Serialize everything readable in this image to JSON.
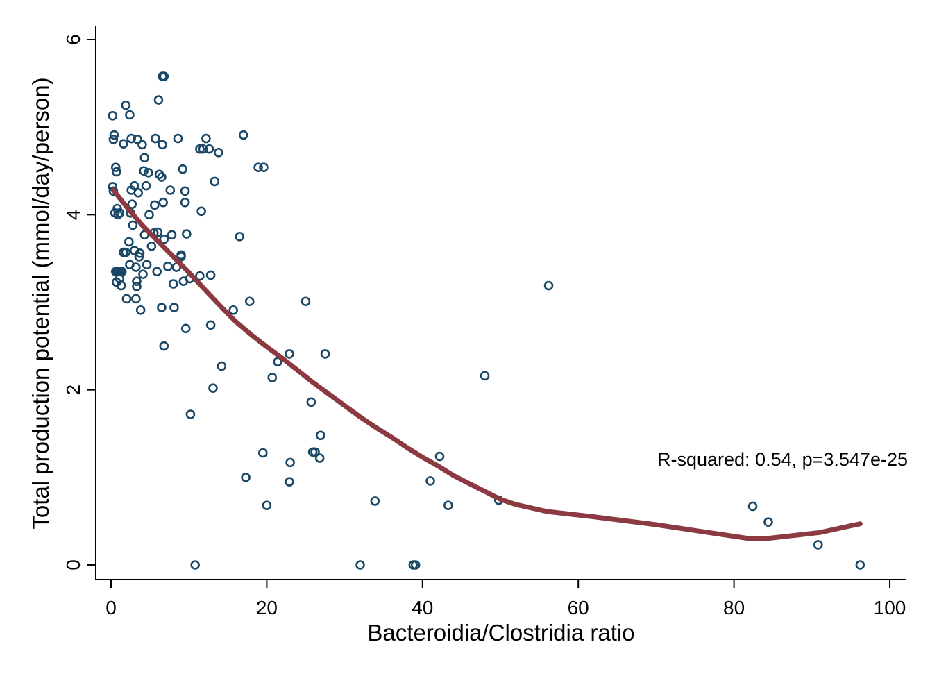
{
  "chart_data": {
    "type": "scatter",
    "title": "",
    "xlabel": "Bacteroidia/Clostridia ratio",
    "ylabel": "Total production potential (mmol/day/person)",
    "xlim": [
      0,
      100
    ],
    "ylim": [
      0,
      6
    ],
    "x_ticks": [
      "0",
      "20",
      "40",
      "60",
      "80",
      "100"
    ],
    "y_ticks": [
      "0",
      "2",
      "4",
      "6"
    ],
    "grid": false,
    "legend": "none",
    "annotation": "R-squared: 0.54, p=3.547e-25",
    "colors": {
      "points": "#1a4766",
      "fit_line": "#8b3a41",
      "axis": "#000000"
    },
    "series": [
      {
        "kind": "points",
        "marker": "hollow-circle",
        "points": [
          [
            0.2,
            5.13
          ],
          [
            0.3,
            4.86
          ],
          [
            0.4,
            4.91
          ],
          [
            0.2,
            4.32
          ],
          [
            0.3,
            4.27
          ],
          [
            0.6,
            4.54
          ],
          [
            0.7,
            4.49
          ],
          [
            0.5,
            4.02
          ],
          [
            0.8,
            4.07
          ],
          [
            0.9,
            4.0
          ],
          [
            1.1,
            4.02
          ],
          [
            0.6,
            3.35
          ],
          [
            0.8,
            3.35
          ],
          [
            1.0,
            3.35
          ],
          [
            1.2,
            3.35
          ],
          [
            1.4,
            3.35
          ],
          [
            0.7,
            3.23
          ],
          [
            1.1,
            3.27
          ],
          [
            1.3,
            3.19
          ],
          [
            1.6,
            3.57
          ],
          [
            1.9,
            3.57
          ],
          [
            1.6,
            4.81
          ],
          [
            1.9,
            5.25
          ],
          [
            2.4,
            5.14
          ],
          [
            2.6,
            4.87
          ],
          [
            2.0,
            3.04
          ],
          [
            2.3,
            3.69
          ],
          [
            2.4,
            3.43
          ],
          [
            2.5,
            4.02
          ],
          [
            2.6,
            4.28
          ],
          [
            2.7,
            4.12
          ],
          [
            2.8,
            3.88
          ],
          [
            3.0,
            4.33
          ],
          [
            3.0,
            3.59
          ],
          [
            3.2,
            3.4
          ],
          [
            3.3,
            3.24
          ],
          [
            3.2,
            3.04
          ],
          [
            3.3,
            3.18
          ],
          [
            3.4,
            4.86
          ],
          [
            3.5,
            4.25
          ],
          [
            3.6,
            3.52
          ],
          [
            3.7,
            3.56
          ],
          [
            3.8,
            2.91
          ],
          [
            4.0,
            4.8
          ],
          [
            4.1,
            3.32
          ],
          [
            4.2,
            4.5
          ],
          [
            4.3,
            4.65
          ],
          [
            4.3,
            3.77
          ],
          [
            4.5,
            4.33
          ],
          [
            4.6,
            3.43
          ],
          [
            4.8,
            4.48
          ],
          [
            4.9,
            4.0
          ],
          [
            5.2,
            3.64
          ],
          [
            5.5,
            3.79
          ],
          [
            5.6,
            4.11
          ],
          [
            5.7,
            4.87
          ],
          [
            5.9,
            3.35
          ],
          [
            6.0,
            3.8
          ],
          [
            6.1,
            5.31
          ],
          [
            6.2,
            4.46
          ],
          [
            6.5,
            4.43
          ],
          [
            6.5,
            2.94
          ],
          [
            6.6,
            4.8
          ],
          [
            6.7,
            4.14
          ],
          [
            6.8,
            3.72
          ],
          [
            6.6,
            5.58
          ],
          [
            6.8,
            5.58
          ],
          [
            6.8,
            2.5
          ],
          [
            7.3,
            3.41
          ],
          [
            7.6,
            4.28
          ],
          [
            7.8,
            3.77
          ],
          [
            8.0,
            3.21
          ],
          [
            8.1,
            2.94
          ],
          [
            8.4,
            3.4
          ],
          [
            8.6,
            4.87
          ],
          [
            9.0,
            3.52
          ],
          [
            9.0,
            3.54
          ],
          [
            9.2,
            4.52
          ],
          [
            9.3,
            3.24
          ],
          [
            9.5,
            4.14
          ],
          [
            9.5,
            4.27
          ],
          [
            9.7,
            3.78
          ],
          [
            9.6,
            2.7
          ],
          [
            10.2,
            1.72
          ],
          [
            10.1,
            3.27
          ],
          [
            10.8,
            0.0
          ],
          [
            11.4,
            4.75
          ],
          [
            11.8,
            4.75
          ],
          [
            11.6,
            4.04
          ],
          [
            12.2,
            4.87
          ],
          [
            12.6,
            4.75
          ],
          [
            11.4,
            3.3
          ],
          [
            12.8,
            3.31
          ],
          [
            12.8,
            2.74
          ],
          [
            13.1,
            2.02
          ],
          [
            13.3,
            4.38
          ],
          [
            13.8,
            4.71
          ],
          [
            14.2,
            2.27
          ],
          [
            15.7,
            2.91
          ],
          [
            16.5,
            3.75
          ],
          [
            17.0,
            4.91
          ],
          [
            17.3,
            1.0
          ],
          [
            17.8,
            3.01
          ],
          [
            18.9,
            4.54
          ],
          [
            19.6,
            4.54
          ],
          [
            19.5,
            1.28
          ],
          [
            20.0,
            0.68
          ],
          [
            20.7,
            2.14
          ],
          [
            21.4,
            2.32
          ],
          [
            22.9,
            2.41
          ],
          [
            23.0,
            1.17
          ],
          [
            22.9,
            0.95
          ],
          [
            25.0,
            3.01
          ],
          [
            25.7,
            1.86
          ],
          [
            25.9,
            1.29
          ],
          [
            26.2,
            1.29
          ],
          [
            26.8,
            1.22
          ],
          [
            26.9,
            1.48
          ],
          [
            27.5,
            2.41
          ],
          [
            32.0,
            0.0
          ],
          [
            33.9,
            0.73
          ],
          [
            38.8,
            0.0
          ],
          [
            39.1,
            0.0
          ],
          [
            41.0,
            0.96
          ],
          [
            42.2,
            1.24
          ],
          [
            43.3,
            0.68
          ],
          [
            48.0,
            2.16
          ],
          [
            49.8,
            0.74
          ],
          [
            56.2,
            3.19
          ],
          [
            82.4,
            0.67
          ],
          [
            84.4,
            0.49
          ],
          [
            90.8,
            0.23
          ],
          [
            96.2,
            0.0
          ]
        ]
      },
      {
        "kind": "fit-line",
        "points": [
          [
            0.3,
            4.28
          ],
          [
            2.0,
            4.09
          ],
          [
            4.0,
            3.88
          ],
          [
            6.0,
            3.7
          ],
          [
            8.0,
            3.52
          ],
          [
            10.0,
            3.34
          ],
          [
            12.0,
            3.15
          ],
          [
            14.0,
            2.96
          ],
          [
            16.0,
            2.78
          ],
          [
            18.0,
            2.63
          ],
          [
            20.0,
            2.49
          ],
          [
            22.0,
            2.36
          ],
          [
            24.0,
            2.22
          ],
          [
            26.0,
            2.08
          ],
          [
            28.0,
            1.95
          ],
          [
            30.0,
            1.82
          ],
          [
            32.0,
            1.69
          ],
          [
            34.0,
            1.57
          ],
          [
            36.0,
            1.46
          ],
          [
            38.0,
            1.34
          ],
          [
            40.0,
            1.23
          ],
          [
            42.0,
            1.13
          ],
          [
            44.0,
            1.02
          ],
          [
            46.0,
            0.93
          ],
          [
            48.0,
            0.84
          ],
          [
            50.0,
            0.75
          ],
          [
            52.0,
            0.69
          ],
          [
            56.0,
            0.61
          ],
          [
            62.0,
            0.55
          ],
          [
            70.0,
            0.46
          ],
          [
            76.0,
            0.38
          ],
          [
            82.0,
            0.3
          ],
          [
            84.0,
            0.3
          ],
          [
            88.0,
            0.34
          ],
          [
            91.0,
            0.37
          ],
          [
            96.2,
            0.47
          ]
        ]
      }
    ]
  }
}
